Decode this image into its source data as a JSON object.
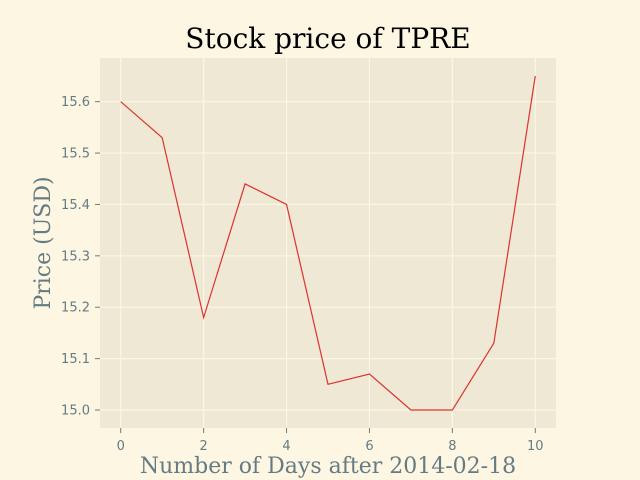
{
  "chart_data": {
    "type": "line",
    "title": "Stock price of TPRE",
    "xlabel": "Number of Days after 2014-02-18",
    "ylabel": "Price (USD)",
    "x": [
      0,
      1,
      2,
      3,
      4,
      5,
      6,
      7,
      8,
      9,
      10
    ],
    "series": [
      {
        "values": [
          15.6,
          15.53,
          15.18,
          15.44,
          15.4,
          15.05,
          15.07,
          15.0,
          15.0,
          15.13,
          15.65
        ]
      }
    ],
    "xlim": [
      -0.5,
      10.5
    ],
    "ylim": [
      14.965,
      15.685
    ],
    "xticks": [
      0,
      2,
      4,
      6,
      8,
      10
    ],
    "yticks": [
      15.0,
      15.1,
      15.2,
      15.3,
      15.4,
      15.5,
      15.6
    ],
    "xtick_labels": [
      "0",
      "2",
      "4",
      "6",
      "8",
      "10"
    ],
    "ytick_labels": [
      "15.0",
      "15.1",
      "15.2",
      "15.3",
      "15.4",
      "15.5",
      "15.6"
    ],
    "grid": true,
    "legend": "none",
    "colors": {
      "background": "#fdf6e3",
      "plot_area": "#eee8d5",
      "grid": "#fdf6e3",
      "line": "#dc322f"
    }
  }
}
